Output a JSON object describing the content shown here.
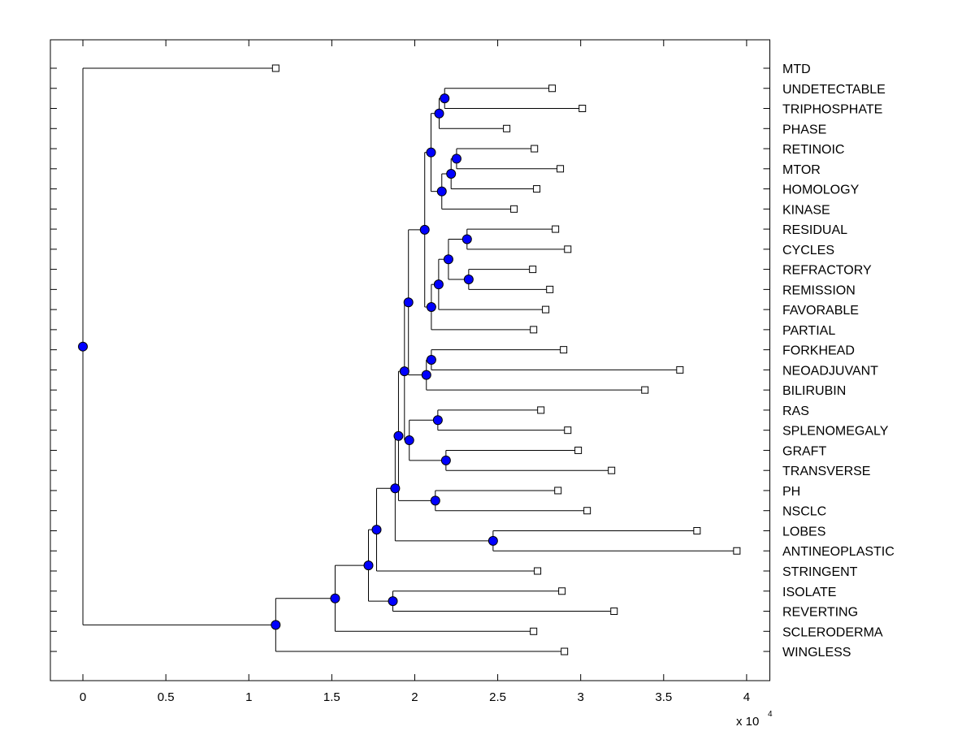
{
  "chart_data": {
    "type": "dendrogram",
    "orientation": "horizontal",
    "xlim": [
      -0.196,
      4.14
    ],
    "x_ticks": [
      "0",
      "0.5",
      "1",
      "1.5",
      "2",
      "2.5",
      "3",
      "3.5",
      "4"
    ],
    "x_tick_values": [
      0,
      0.5,
      1,
      1.5,
      2,
      2.5,
      3,
      3.5,
      4
    ],
    "x_multiplier_label": "x 10",
    "x_multiplier_exponent": "4",
    "node_color": "#0000ff",
    "leaf_marker": "open-square",
    "tree": {
      "h": 0,
      "children": [
        {
          "label": "MTD",
          "h": 1.162
        },
        {
          "h": 1.162,
          "children": [
            {
              "h": 1.52,
              "children": [
                {
                  "h": 1.721,
                  "children": [
                    {
                      "h": 1.77,
                      "children": [
                        {
                          "h": 1.882,
                          "children": [
                            {
                              "h": 1.902,
                              "children": [
                                {
                                  "h": 1.938,
                                  "children": [
                                    {
                                      "h": 1.962,
                                      "children": [
                                        {
                                          "h": 2.06,
                                          "children": [
                                            {
                                              "h": 2.098,
                                              "children": [
                                                {
                                                  "h": 2.147,
                                                  "children": [
                                                    {
                                                      "h": 2.18,
                                                      "children": [
                                                        {
                                                          "label": "UNDETECTABLE",
                                                          "h": 2.828
                                                        },
                                                        {
                                                          "label": "TRIPHOSPHATE",
                                                          "h": 3.01
                                                        }
                                                      ]
                                                    },
                                                    {
                                                      "label": "PHASE",
                                                      "h": 2.554
                                                    }
                                                  ]
                                                },
                                                {
                                                  "h": 2.163,
                                                  "children": [
                                                    {
                                                      "h": 2.219,
                                                      "children": [
                                                        {
                                                          "h": 2.252,
                                                          "children": [
                                                            {
                                                              "label": "RETINOIC",
                                                              "h": 2.721
                                                            },
                                                            {
                                                              "label": "MTOR",
                                                              "h": 2.877
                                                            }
                                                          ]
                                                        },
                                                        {
                                                          "label": "HOMOLOGY",
                                                          "h": 2.735
                                                        }
                                                      ]
                                                    },
                                                    {
                                                      "label": "KINASE",
                                                      "h": 2.598
                                                    }
                                                  ]
                                                }
                                              ]
                                            },
                                            {
                                              "h": 2.1,
                                              "children": [
                                                {
                                                  "h": 2.144,
                                                  "children": [
                                                    {
                                                      "h": 2.203,
                                                      "children": [
                                                        {
                                                          "h": 2.315,
                                                          "children": [
                                                            {
                                                              "label": "RESIDUAL",
                                                              "h": 2.848
                                                            },
                                                            {
                                                              "label": "CYCLES",
                                                              "h": 2.922
                                                            }
                                                          ]
                                                        },
                                                        {
                                                          "h": 2.325,
                                                          "children": [
                                                            {
                                                              "label": "REFRACTORY",
                                                              "h": 2.711
                                                            },
                                                            {
                                                              "label": "REMISSION",
                                                              "h": 2.814
                                                            }
                                                          ]
                                                        }
                                                      ]
                                                    },
                                                    {
                                                      "label": "FAVORABLE",
                                                      "h": 2.789
                                                    }
                                                  ]
                                                },
                                                {
                                                  "label": "PARTIAL",
                                                  "h": 2.716
                                                }
                                              ]
                                            }
                                          ]
                                        },
                                        {
                                          "h": 2.07,
                                          "children": [
                                            {
                                              "h": 2.1,
                                              "children": [
                                                {
                                                  "label": "FORKHEAD",
                                                  "h": 2.897
                                                },
                                                {
                                                  "label": "NEOADJUVANT",
                                                  "h": 3.598
                                                }
                                              ]
                                            },
                                            {
                                              "label": "BILIRUBIN",
                                              "h": 3.387
                                            }
                                          ]
                                        }
                                      ]
                                    },
                                    {
                                      "h": 1.967,
                                      "children": [
                                        {
                                          "h": 2.139,
                                          "children": [
                                            {
                                              "label": "RAS",
                                              "h": 2.76
                                            },
                                            {
                                              "label": "SPLENOMEGALY",
                                              "h": 2.922
                                            }
                                          ]
                                        },
                                        {
                                          "h": 2.188,
                                          "children": [
                                            {
                                              "label": "GRAFT",
                                              "h": 2.985
                                            },
                                            {
                                              "label": "TRANSVERSE",
                                              "h": 3.186
                                            }
                                          ]
                                        }
                                      ]
                                    }
                                  ]
                                },
                                {
                                  "h": 2.124,
                                  "children": [
                                    {
                                      "label": "PH",
                                      "h": 2.863
                                    },
                                    {
                                      "label": "NSCLC",
                                      "h": 3.039
                                    }
                                  ]
                                }
                              ]
                            },
                            {
                              "h": 2.472,
                              "children": [
                                {
                                  "label": "LOBES",
                                  "h": 3.701
                                },
                                {
                                  "label": "ANTINEOPLASTIC",
                                  "h": 3.941
                                }
                              ]
                            }
                          ]
                        },
                        {
                          "label": "STRINGENT",
                          "h": 2.74
                        }
                      ]
                    },
                    {
                      "h": 1.868,
                      "children": [
                        {
                          "label": "ISOLATE",
                          "h": 2.887
                        },
                        {
                          "label": "REVERTING",
                          "h": 3.201
                        }
                      ]
                    }
                  ]
                },
                {
                  "label": "SCLERODERMA",
                  "h": 2.716
                }
              ]
            },
            {
              "label": "WINGLESS",
              "h": 2.902
            }
          ]
        }
      ]
    }
  }
}
